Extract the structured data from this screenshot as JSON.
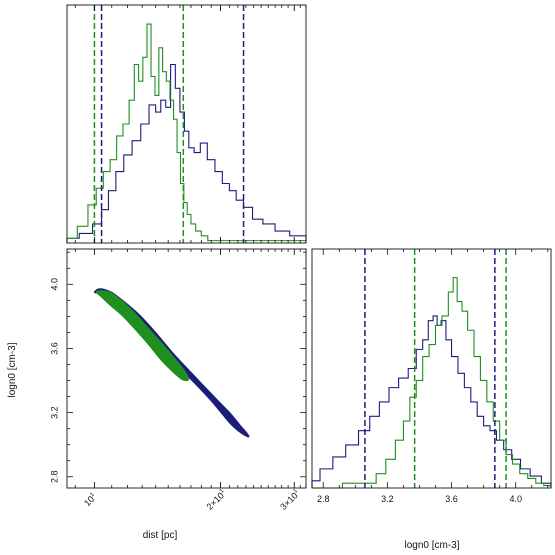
{
  "chart_data": [
    {
      "panel": "top-left",
      "type": "line",
      "subtype": "histogram",
      "title": "",
      "xlabel": "",
      "ylabel": "",
      "x_scale": "log",
      "xlim": [
        8.6,
        32.0
      ],
      "ylim": [
        0,
        1.0
      ],
      "series": [
        {
          "color": "#1c1c7a",
          "x": [
            8.8,
            9.6,
            10.2,
            10.6,
            11.0,
            11.5,
            12.0,
            12.6,
            13.2,
            13.8,
            14.2,
            14.6,
            15.0,
            15.4,
            15.8,
            16.2,
            16.6,
            17.0,
            17.6,
            18.2,
            19.0,
            19.8,
            20.6,
            21.4,
            22.2,
            23.2,
            24.5,
            26.0,
            28.0,
            30.5
          ],
          "values": [
            0.02,
            0.04,
            0.08,
            0.14,
            0.22,
            0.3,
            0.37,
            0.43,
            0.5,
            0.58,
            0.55,
            0.6,
            0.57,
            0.75,
            0.65,
            0.55,
            0.47,
            0.4,
            0.38,
            0.42,
            0.35,
            0.3,
            0.25,
            0.22,
            0.18,
            0.15,
            0.1,
            0.08,
            0.05,
            0.03
          ]
        },
        {
          "color": "#1f8f1f",
          "x": [
            8.8,
            9.4,
            9.9,
            10.3,
            10.7,
            11.1,
            11.5,
            11.9,
            12.3,
            12.6,
            12.9,
            13.2,
            13.5,
            13.8,
            14.1,
            14.4,
            14.7,
            15.0,
            15.3,
            15.6,
            15.9,
            16.2,
            16.5,
            16.8,
            17.2,
            17.7,
            18.3,
            19.0
          ],
          "values": [
            0.02,
            0.07,
            0.16,
            0.23,
            0.3,
            0.35,
            0.45,
            0.5,
            0.6,
            0.75,
            0.68,
            0.78,
            0.92,
            0.7,
            0.62,
            0.82,
            0.72,
            0.68,
            0.6,
            0.52,
            0.38,
            0.25,
            0.17,
            0.12,
            0.08,
            0.05,
            0.03,
            0.01
          ]
        }
      ],
      "vlines": [
        {
          "x": 10.0,
          "color": "#1f8f1f"
        },
        {
          "x": 10.4,
          "color": "#1c1c7a"
        },
        {
          "x": 16.3,
          "color": "#1f8f1f"
        },
        {
          "x": 22.7,
          "color": "#1c1c7a"
        }
      ]
    },
    {
      "panel": "bottom-left",
      "type": "scatter",
      "subtype": "2d-contour",
      "title": "",
      "xlabel": "dist [pc]",
      "ylabel": "logn0 [cm-3]",
      "x_scale": "log",
      "xlim": [
        8.6,
        32.0
      ],
      "ylim": [
        2.73,
        4.22
      ],
      "x_ticks": [
        {
          "value": 10,
          "label": "10"
        },
        {
          "value": 20,
          "label": "2×10"
        },
        {
          "value": 30,
          "label": "3×10"
        }
      ],
      "x_tick_exponent": "1",
      "y_ticks": [
        {
          "value": 2.8,
          "label": "2.8"
        },
        {
          "value": 3.2,
          "label": "3.2"
        },
        {
          "value": 3.6,
          "label": "3.6"
        },
        {
          "value": 4.0,
          "label": "4.0"
        }
      ],
      "series": [
        {
          "color": "#1c1c7a",
          "x": [
            10.0,
            10.2,
            10.5,
            11.0,
            11.8,
            12.8,
            14.0,
            15.3,
            16.6,
            18.2,
            19.8,
            21.2,
            22.3,
            23.0,
            23.3,
            23.4,
            23.2,
            22.8,
            22.2,
            21.3,
            20.2,
            18.9,
            17.4,
            15.8,
            14.2,
            12.8,
            11.6,
            10.8,
            10.3,
            10.0
          ],
          "y": [
            3.95,
            3.97,
            3.97,
            3.95,
            3.89,
            3.81,
            3.7,
            3.58,
            3.48,
            3.37,
            3.27,
            3.19,
            3.12,
            3.08,
            3.06,
            3.05,
            3.05,
            3.06,
            3.08,
            3.12,
            3.19,
            3.28,
            3.38,
            3.49,
            3.61,
            3.73,
            3.84,
            3.91,
            3.94,
            3.95
          ]
        },
        {
          "color": "#1f8f1f",
          "x": [
            10.1,
            10.4,
            10.9,
            11.6,
            12.4,
            13.3,
            14.3,
            15.3,
            16.1,
            16.6,
            16.8,
            16.6,
            16.1,
            15.3,
            14.4,
            13.5,
            12.6,
            11.7,
            10.9,
            10.4,
            10.1
          ],
          "y": [
            3.95,
            3.96,
            3.95,
            3.9,
            3.83,
            3.74,
            3.65,
            3.56,
            3.49,
            3.44,
            3.41,
            3.4,
            3.41,
            3.46,
            3.53,
            3.62,
            3.71,
            3.8,
            3.87,
            3.92,
            3.95
          ]
        }
      ]
    },
    {
      "panel": "bottom-right",
      "type": "line",
      "subtype": "histogram",
      "title": "",
      "xlabel": "logn0 [cm-3]",
      "ylabel": "",
      "xlim": [
        2.73,
        4.22
      ],
      "ylim": [
        0,
        1.0
      ],
      "x_ticks": [
        {
          "value": 2.8,
          "label": "2.8"
        },
        {
          "value": 3.2,
          "label": "3.2"
        },
        {
          "value": 3.6,
          "label": "3.6"
        },
        {
          "value": 4.0,
          "label": "4.0"
        }
      ],
      "series": [
        {
          "color": "#1c1c7a",
          "x": [
            2.74,
            2.82,
            2.9,
            2.98,
            3.06,
            3.12,
            3.18,
            3.24,
            3.3,
            3.36,
            3.4,
            3.44,
            3.47,
            3.5,
            3.52,
            3.55,
            3.58,
            3.62,
            3.66,
            3.7,
            3.74,
            3.78,
            3.82,
            3.86,
            3.9,
            3.95,
            4.0,
            4.06,
            4.12,
            4.2
          ],
          "values": [
            0.03,
            0.08,
            0.13,
            0.18,
            0.24,
            0.3,
            0.36,
            0.42,
            0.46,
            0.5,
            0.58,
            0.62,
            0.7,
            0.72,
            0.68,
            0.7,
            0.62,
            0.55,
            0.48,
            0.42,
            0.36,
            0.3,
            0.26,
            0.24,
            0.2,
            0.16,
            0.12,
            0.08,
            0.05,
            0.02
          ]
        },
        {
          "color": "#1f8f1f",
          "x": [
            2.74,
            3.1,
            3.16,
            3.22,
            3.28,
            3.32,
            3.36,
            3.4,
            3.44,
            3.48,
            3.52,
            3.56,
            3.6,
            3.62,
            3.65,
            3.68,
            3.72,
            3.76,
            3.8,
            3.84,
            3.88,
            3.92,
            3.96,
            4.0,
            4.05,
            4.1,
            4.15,
            4.2
          ],
          "values": [
            0.0,
            0.02,
            0.06,
            0.12,
            0.2,
            0.28,
            0.38,
            0.45,
            0.55,
            0.6,
            0.68,
            0.72,
            0.82,
            0.88,
            0.78,
            0.74,
            0.66,
            0.55,
            0.45,
            0.36,
            0.28,
            0.2,
            0.14,
            0.1,
            0.06,
            0.04,
            0.02,
            0.01
          ]
        }
      ],
      "vlines": [
        {
          "x": 3.06,
          "color": "#1c1c7a"
        },
        {
          "x": 3.37,
          "color": "#1f8f1f"
        },
        {
          "x": 3.87,
          "color": "#1c1c7a"
        },
        {
          "x": 3.94,
          "color": "#1f8f1f"
        }
      ]
    }
  ],
  "colors": {
    "navy": "#1c1c7a",
    "green": "#1f8f1f",
    "frame": "#111111"
  }
}
